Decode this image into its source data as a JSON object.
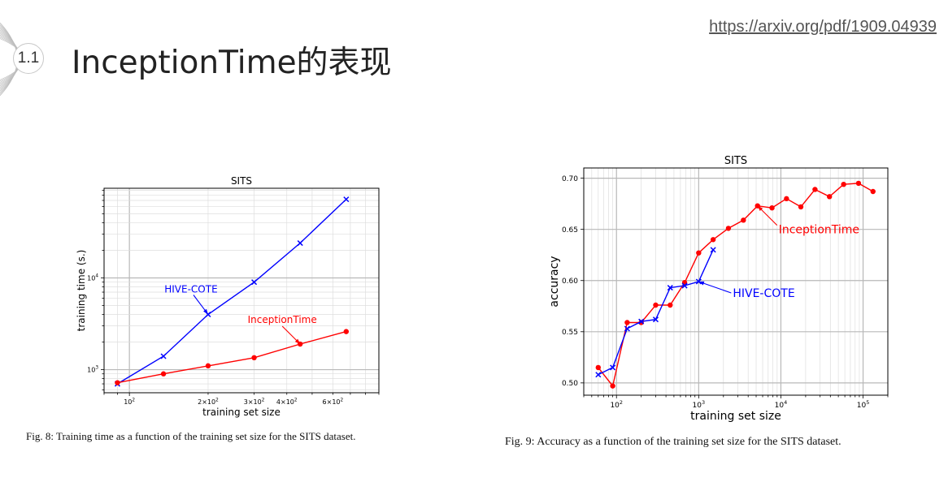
{
  "slide": {
    "section_number": "1.1",
    "title": "InceptionTime的表现",
    "source_link": "https://arxiv.org/pdf/1909.04939"
  },
  "figures": [
    {
      "caption": "Fig. 8: Training time as a function of the training set size for the SITS dataset."
    },
    {
      "caption": "Fig. 9: Accuracy as a function of the training set size for the SITS dataset."
    }
  ],
  "chart_data": [
    {
      "type": "line",
      "title": "SITS",
      "xlabel": "training set size",
      "ylabel": "training time (s.)",
      "xscale": "log",
      "yscale": "log",
      "xlim": [
        80,
        900
      ],
      "ylim": [
        560,
        95000
      ],
      "x_ticks": [
        {
          "value": 100,
          "label": "10^2"
        },
        {
          "value": 200,
          "label": "2×10^2"
        },
        {
          "value": 300,
          "label": "3×10^2"
        },
        {
          "value": 400,
          "label": "4×10^2"
        },
        {
          "value": 600,
          "label": "6×10^2"
        }
      ],
      "y_ticks": [
        {
          "value": 1000,
          "label": "10^3"
        },
        {
          "value": 10000,
          "label": "10^4"
        }
      ],
      "grid": true,
      "series": [
        {
          "name": "HIVE-COTE",
          "color": "#0000ff",
          "marker": "x",
          "x": [
            90,
            135,
            200,
            300,
            450,
            675
          ],
          "y": [
            700,
            1400,
            4000,
            9000,
            24000,
            72000
          ]
        },
        {
          "name": "InceptionTime",
          "color": "#ff0000",
          "marker": "o",
          "x": [
            90,
            135,
            200,
            300,
            450,
            675
          ],
          "y": [
            720,
            900,
            1100,
            1350,
            1900,
            2600
          ]
        }
      ],
      "annotations": [
        {
          "text": "HIVE-COTE",
          "color": "#0000ff",
          "points_to": [
            200,
            4000
          ]
        },
        {
          "text": "InceptionTime",
          "color": "#ff0000",
          "points_to": [
            450,
            1900
          ]
        }
      ]
    },
    {
      "type": "line",
      "title": "SITS",
      "xlabel": "training set size",
      "ylabel": "accuracy",
      "xscale": "log",
      "yscale": "linear",
      "xlim": [
        40,
        200000
      ],
      "ylim": [
        0.488,
        0.71
      ],
      "x_ticks": [
        {
          "value": 100,
          "label": "10^2"
        },
        {
          "value": 1000,
          "label": "10^3"
        },
        {
          "value": 10000,
          "label": "10^4"
        },
        {
          "value": 100000,
          "label": "10^5"
        }
      ],
      "y_ticks": [
        {
          "value": 0.5,
          "label": "0.50"
        },
        {
          "value": 0.55,
          "label": "0.55"
        },
        {
          "value": 0.6,
          "label": "0.60"
        },
        {
          "value": 0.65,
          "label": "0.65"
        },
        {
          "value": 0.7,
          "label": "0.70"
        }
      ],
      "grid": true,
      "series": [
        {
          "name": "InceptionTime",
          "color": "#ff0000",
          "marker": "o",
          "x": [
            60,
            90,
            135,
            200,
            300,
            450,
            675,
            1000,
            1500,
            2300,
            3500,
            5200,
            7800,
            11700,
            17500,
            26000,
            39000,
            58000,
            88000,
            132000
          ],
          "y": [
            0.515,
            0.497,
            0.559,
            0.559,
            0.576,
            0.576,
            0.598,
            0.627,
            0.64,
            0.651,
            0.659,
            0.673,
            0.671,
            0.68,
            0.672,
            0.689,
            0.682,
            0.694,
            0.695,
            0.687
          ]
        },
        {
          "name": "HIVE-COTE",
          "color": "#0000ff",
          "marker": "x",
          "x": [
            60,
            90,
            135,
            200,
            300,
            450,
            675,
            1000,
            1500
          ],
          "y": [
            0.508,
            0.515,
            0.553,
            0.56,
            0.562,
            0.593,
            0.595,
            0.599,
            0.63
          ]
        }
      ],
      "annotations": [
        {
          "text": "InceptionTime",
          "color": "#ff0000",
          "points_to": [
            5200,
            0.673
          ]
        },
        {
          "text": "HIVE-COTE",
          "color": "#0000ff",
          "points_to": [
            1000,
            0.599
          ]
        }
      ]
    }
  ]
}
